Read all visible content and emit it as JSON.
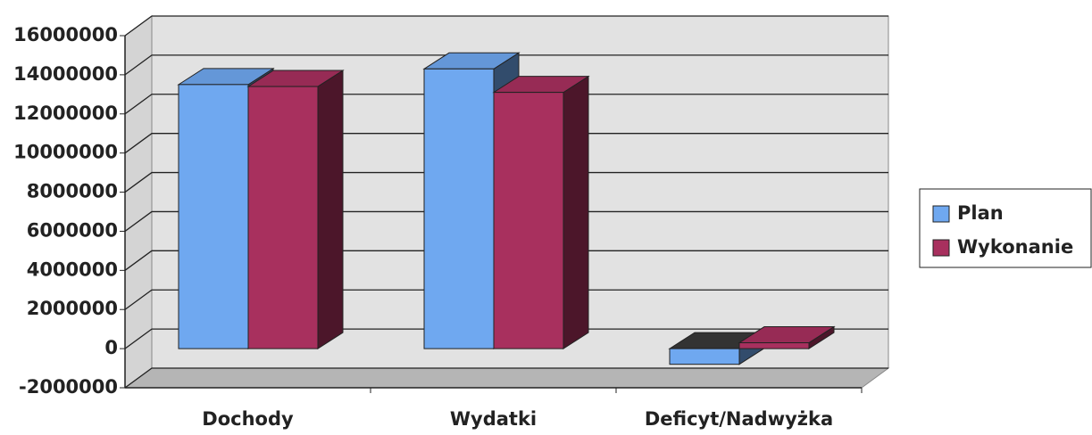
{
  "chart_data": {
    "type": "bar",
    "categories": [
      "Dochody",
      "Wydatki",
      "Deficyt/Nadwyżka"
    ],
    "series": [
      {
        "name": "Plan",
        "color": "#6fa8f0",
        "values": [
          13500000,
          14300000,
          -800000
        ]
      },
      {
        "name": "Wykonanie",
        "color": "#a8305e",
        "values": [
          13400000,
          13100000,
          300000
        ]
      }
    ],
    "ylim": [
      -2000000,
      16000000
    ],
    "yticks": [
      -2000000,
      0,
      2000000,
      4000000,
      6000000,
      8000000,
      10000000,
      12000000,
      14000000,
      16000000
    ],
    "grid": true,
    "legend": "right"
  }
}
